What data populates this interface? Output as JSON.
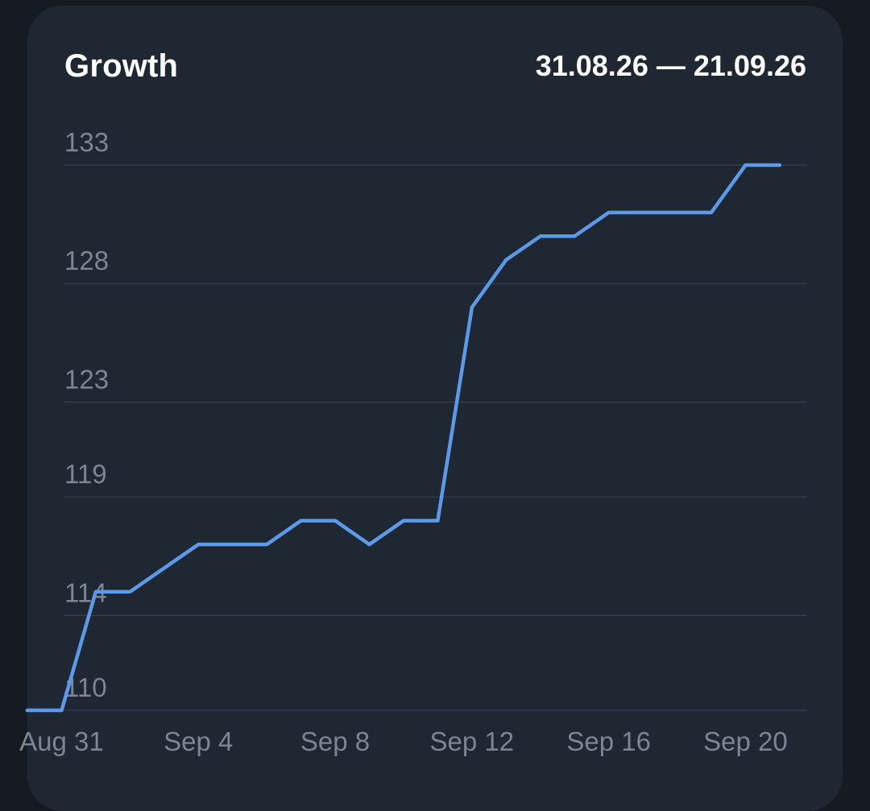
{
  "header": {
    "title": "Growth",
    "date_range": "31.08.26 — 21.09.26"
  },
  "colors": {
    "background": "#151b23",
    "card": "#1f2733",
    "line": "#5b9ae9",
    "grid": "#374151",
    "tick_text": "#7b8594",
    "title_text": "#ffffff"
  },
  "chart_data": {
    "type": "line",
    "title": "Growth",
    "xlabel": "",
    "ylabel": "",
    "grid": true,
    "legend": "none",
    "y_ticks": [
      110,
      114,
      119,
      123,
      128,
      133
    ],
    "x_ticks": [
      "Aug 31",
      "Sep 4",
      "Sep 8",
      "Sep 12",
      "Sep 16",
      "Sep 20"
    ],
    "x": [
      "Aug 30",
      "Aug 31",
      "Sep 1",
      "Sep 2",
      "Sep 3",
      "Sep 4",
      "Sep 5",
      "Sep 6",
      "Sep 7",
      "Sep 8",
      "Sep 9",
      "Sep 10",
      "Sep 11",
      "Sep 12",
      "Sep 13",
      "Sep 14",
      "Sep 15",
      "Sep 16",
      "Sep 17",
      "Sep 18",
      "Sep 19",
      "Sep 20",
      "Sep 21"
    ],
    "values": [
      110,
      110,
      115,
      115,
      116,
      117,
      117,
      117,
      118,
      118,
      117,
      118,
      118,
      127,
      129,
      130,
      130,
      131,
      131,
      131,
      131,
      133,
      133
    ]
  }
}
